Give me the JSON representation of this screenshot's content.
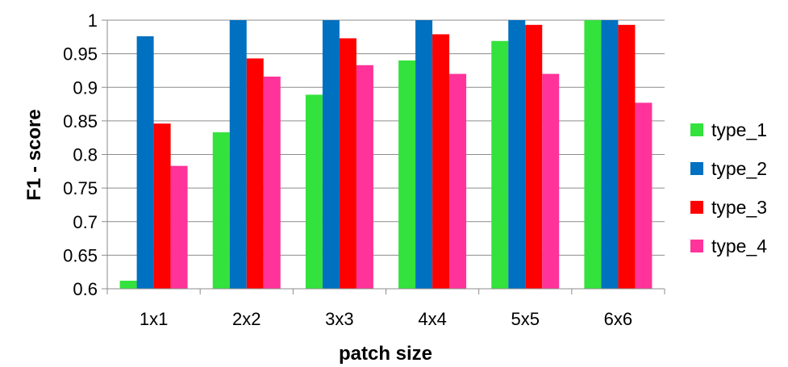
{
  "chart_data": {
    "type": "bar",
    "title": "",
    "xlabel": "patch size",
    "ylabel": "F1 - score",
    "ylim": [
      0.6,
      1.0
    ],
    "yticks": [
      0.6,
      0.65,
      0.7,
      0.75,
      0.8,
      0.85,
      0.9,
      0.95,
      1.0
    ],
    "ytick_labels": [
      "0.6",
      "0.65",
      "0.7",
      "0.75",
      "0.8",
      "0.85",
      "0.9",
      "0.95",
      "1"
    ],
    "categories": [
      "1x1",
      "2x2",
      "3x3",
      "4x4",
      "5x5",
      "6x6"
    ],
    "grid": true,
    "legend_position": "right",
    "series": [
      {
        "name": "type_1",
        "color": "#33e23c",
        "values": [
          0.612,
          0.833,
          0.889,
          0.94,
          0.969,
          1.0
        ]
      },
      {
        "name": "type_2",
        "color": "#0070c0",
        "values": [
          0.976,
          1.0,
          1.0,
          1.0,
          1.0,
          1.0
        ]
      },
      {
        "name": "type_3",
        "color": "#ff0000",
        "values": [
          0.846,
          0.943,
          0.973,
          0.979,
          0.993,
          0.993
        ]
      },
      {
        "name": "type_4",
        "color": "#ff3399",
        "values": [
          0.783,
          0.916,
          0.933,
          0.92,
          0.92,
          0.877
        ]
      }
    ]
  }
}
